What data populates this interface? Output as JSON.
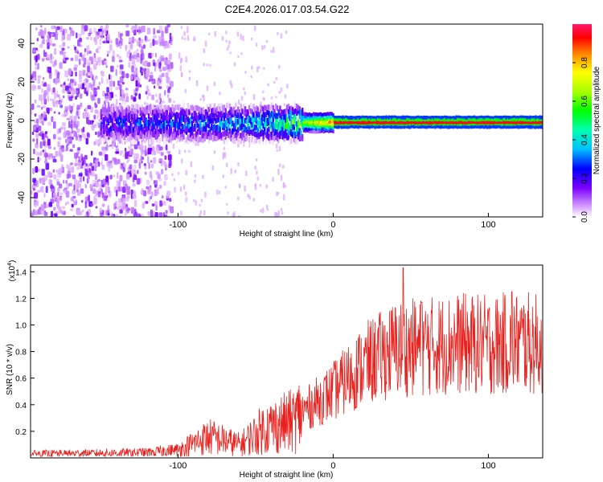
{
  "title": "C2E4.2026.017.03.54.G22",
  "chart_data": [
    {
      "type": "heatmap",
      "xlabel": "Height of straight line (km)",
      "ylabel": "Frequency (Hz)",
      "xlim": [
        -195,
        135
      ],
      "ylim": [
        -50,
        50
      ],
      "xticks": [
        -100,
        0,
        100
      ],
      "xtick_labels": [
        "-100",
        "0",
        "100"
      ],
      "yticks": [
        -40,
        -20,
        0,
        20,
        40
      ],
      "ytick_labels": [
        "-40",
        "-20",
        "0",
        "20",
        "40"
      ],
      "colorbar": {
        "label": "Normalized spectral amplitude",
        "range": [
          0,
          1
        ],
        "ticks": [
          0.0,
          0.2,
          0.4,
          0.6,
          0.8
        ],
        "tick_labels": [
          "0.0",
          "0.2",
          "0.4",
          "0.6",
          "0.8"
        ]
      },
      "description_series": {
        "noise_region_x": [
          -195,
          -105
        ],
        "signal_start_x": -150,
        "signal_center_freq_hz": 0,
        "ridge": [
          {
            "x": -150,
            "amp": 0.3
          },
          {
            "x": -100,
            "amp": 0.35
          },
          {
            "x": -50,
            "amp": 0.45
          },
          {
            "x": -20,
            "amp": 0.7
          },
          {
            "x": 0,
            "amp": 0.95
          },
          {
            "x": 50,
            "amp": 0.95
          },
          {
            "x": 100,
            "amp": 0.95
          },
          {
            "x": 135,
            "amp": 0.95
          }
        ]
      }
    },
    {
      "type": "line",
      "xlabel": "Height of straight line (km)",
      "ylabel": "SNR (10 * v/v)",
      "y_multiplier_label": "(x10",
      "y_multiplier_exp": "4",
      "y_multiplier_close": ")",
      "xlim": [
        -195,
        135
      ],
      "ylim": [
        0,
        1.45
      ],
      "xticks": [
        -100,
        0,
        100
      ],
      "xtick_labels": [
        "-100",
        "0",
        "100"
      ],
      "yticks": [
        0.2,
        0.4,
        0.6,
        0.8,
        1.0,
        1.2,
        1.4
      ],
      "ytick_labels": [
        "0.2",
        "0.4",
        "0.6",
        "0.8",
        "1.0",
        "1.2",
        "1.4"
      ],
      "color": "#e8231f",
      "envelope": [
        {
          "x": -195,
          "y": 0.03
        },
        {
          "x": -120,
          "y": 0.04
        },
        {
          "x": -100,
          "y": 0.06
        },
        {
          "x": -80,
          "y": 0.16
        },
        {
          "x": -60,
          "y": 0.1
        },
        {
          "x": -45,
          "y": 0.22
        },
        {
          "x": -25,
          "y": 0.28
        },
        {
          "x": -20,
          "y": 0.35
        },
        {
          "x": 0,
          "y": 0.5
        },
        {
          "x": 20,
          "y": 0.7
        },
        {
          "x": 40,
          "y": 0.82
        },
        {
          "x": 60,
          "y": 0.84
        },
        {
          "x": 80,
          "y": 0.86
        },
        {
          "x": 100,
          "y": 0.85
        },
        {
          "x": 120,
          "y": 0.87
        },
        {
          "x": 135,
          "y": 0.85
        }
      ],
      "peaks": [
        {
          "x": 45,
          "y": 1.43
        },
        {
          "x": 115,
          "y": 1.25
        },
        {
          "x": 57,
          "y": 1.17
        }
      ]
    }
  ]
}
